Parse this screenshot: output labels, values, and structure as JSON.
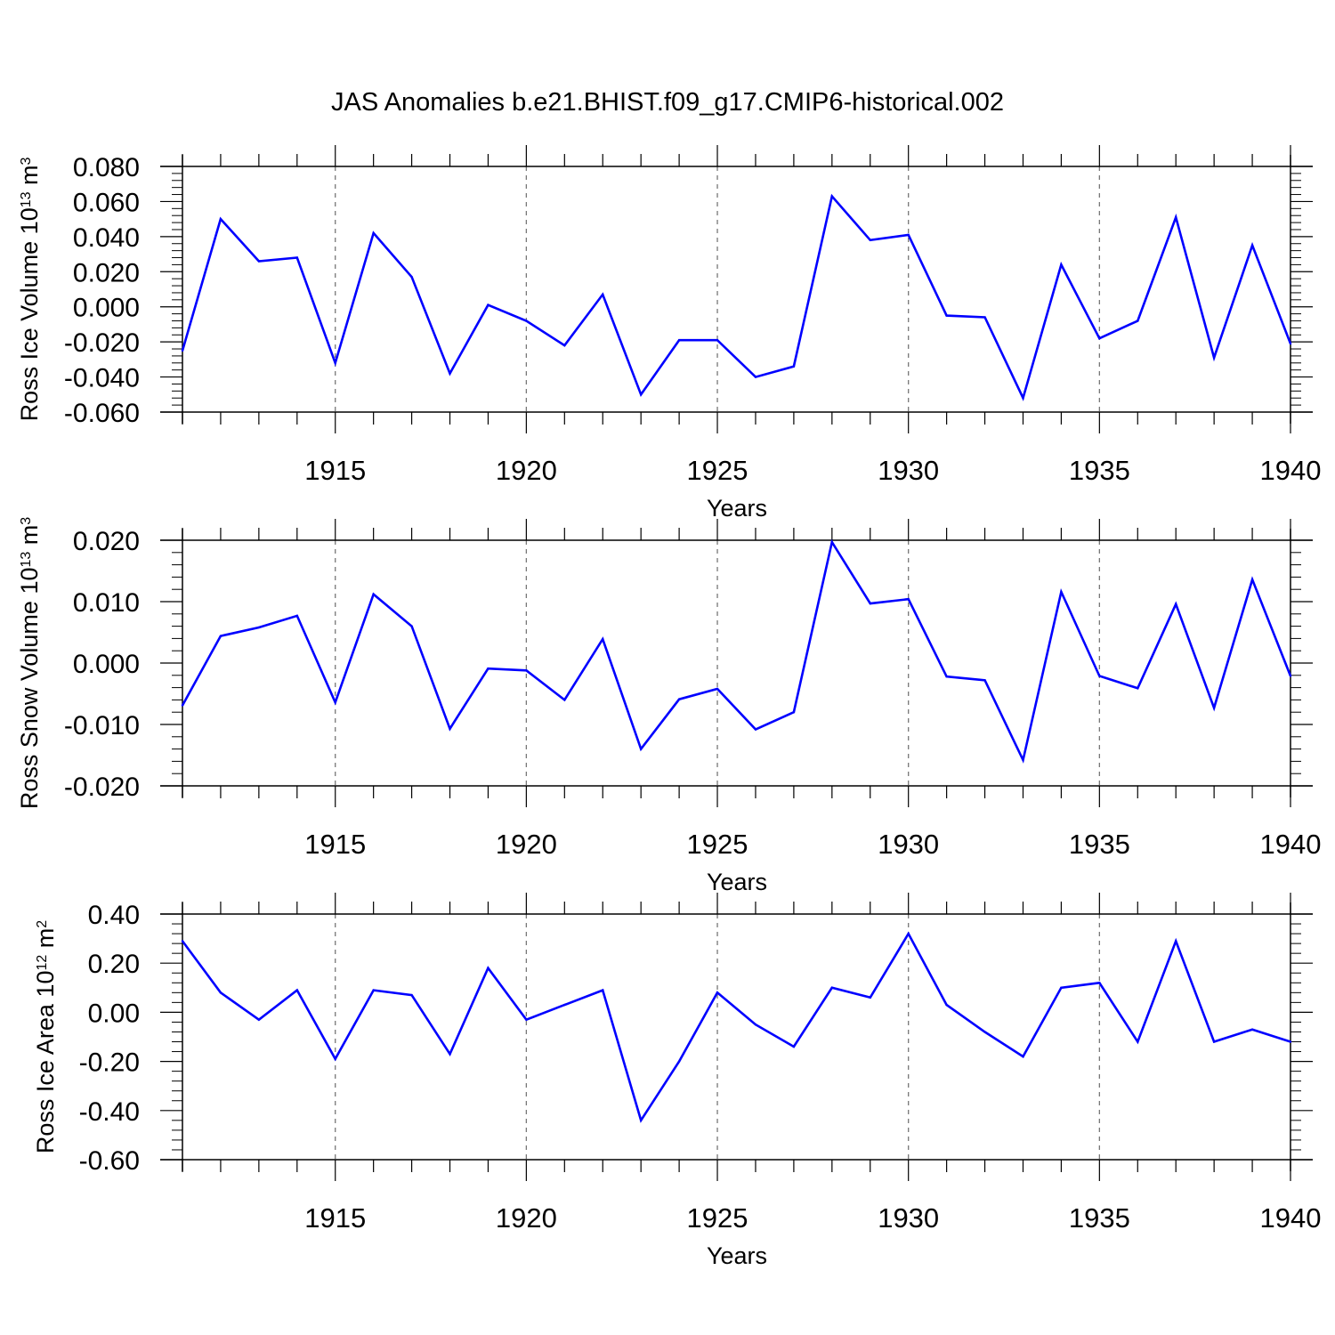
{
  "title": "JAS Anomalies b.e21.BHIST.f09_g17.CMIP6-historical.002",
  "line_color": "#0000ff",
  "chart_data": [
    {
      "type": "line",
      "xlabel": "Years",
      "ylabel": {
        "main": "Ross Ice Volume 10",
        "exp": "13",
        "unit": " m",
        "unit_exp": "3"
      },
      "xlim": [
        1911,
        1940
      ],
      "ylim": [
        -0.06,
        0.08
      ],
      "xticks": [
        "1915",
        "1920",
        "1925",
        "1930",
        "1935",
        "1940"
      ],
      "yticks": [
        "0.080",
        "0.060",
        "0.040",
        "0.020",
        "0.000",
        "-0.020",
        "-0.040",
        "-0.060"
      ],
      "grid": "x-only dashed",
      "x": [
        1911,
        1912,
        1913,
        1914,
        1915,
        1916,
        1917,
        1918,
        1919,
        1920,
        1921,
        1922,
        1923,
        1924,
        1925,
        1926,
        1927,
        1928,
        1929,
        1930,
        1931,
        1932,
        1933,
        1934,
        1935,
        1936,
        1937,
        1938,
        1939,
        1940
      ],
      "values": [
        -0.025,
        0.05,
        0.026,
        0.028,
        -0.032,
        0.042,
        0.017,
        -0.038,
        0.001,
        -0.008,
        -0.022,
        0.007,
        -0.05,
        -0.019,
        -0.019,
        -0.04,
        -0.034,
        0.063,
        0.038,
        0.041,
        -0.005,
        -0.006,
        -0.052,
        0.024,
        -0.018,
        -0.008,
        0.051,
        -0.029,
        0.035,
        -0.021
      ]
    },
    {
      "type": "line",
      "xlabel": "Years",
      "ylabel": {
        "main": "Ross Snow Volume 10",
        "exp": "13",
        "unit": " m",
        "unit_exp": "3"
      },
      "xlim": [
        1911,
        1940
      ],
      "ylim": [
        -0.02,
        0.02
      ],
      "xticks": [
        "1915",
        "1920",
        "1925",
        "1930",
        "1935",
        "1940"
      ],
      "yticks": [
        "0.020",
        "0.010",
        "0.000",
        "-0.010",
        "-0.020"
      ],
      "grid": "x-only dashed",
      "x": [
        1911,
        1912,
        1913,
        1914,
        1915,
        1916,
        1917,
        1918,
        1919,
        1920,
        1921,
        1922,
        1923,
        1924,
        1925,
        1926,
        1927,
        1928,
        1929,
        1930,
        1931,
        1932,
        1933,
        1934,
        1935,
        1936,
        1937,
        1938,
        1939,
        1940
      ],
      "values": [
        -0.0069,
        0.0044,
        0.0058,
        0.0077,
        -0.0064,
        0.0112,
        0.006,
        -0.0107,
        -0.0009,
        -0.0012,
        -0.006,
        0.0039,
        -0.014,
        -0.0059,
        -0.0042,
        -0.0108,
        -0.008,
        0.0197,
        0.0097,
        0.0104,
        -0.0022,
        -0.0028,
        -0.0158,
        0.0116,
        -0.0021,
        -0.0041,
        0.0096,
        -0.0073,
        0.0136,
        -0.0021
      ]
    },
    {
      "type": "line",
      "xlabel": "Years",
      "ylabel": {
        "main": "Ross Ice Area 10",
        "exp": "12",
        "unit": " m",
        "unit_exp": "2"
      },
      "xlim": [
        1911,
        1940
      ],
      "ylim": [
        -0.6,
        0.4
      ],
      "xticks": [
        "1915",
        "1920",
        "1925",
        "1930",
        "1935",
        "1940"
      ],
      "yticks": [
        "0.40",
        "0.20",
        "0.00",
        "-0.20",
        "-0.40",
        "-0.60"
      ],
      "grid": "x-only dashed",
      "x": [
        1911,
        1912,
        1913,
        1914,
        1915,
        1916,
        1917,
        1918,
        1919,
        1920,
        1921,
        1922,
        1923,
        1924,
        1925,
        1926,
        1927,
        1928,
        1929,
        1930,
        1931,
        1932,
        1933,
        1934,
        1935,
        1936,
        1937,
        1938,
        1939,
        1940
      ],
      "values": [
        0.29,
        0.08,
        -0.03,
        0.09,
        -0.19,
        0.09,
        0.07,
        -0.17,
        0.18,
        -0.03,
        0.03,
        0.09,
        -0.44,
        -0.2,
        0.08,
        -0.05,
        -0.14,
        0.1,
        0.06,
        0.32,
        0.03,
        -0.08,
        -0.18,
        0.1,
        0.12,
        -0.12,
        0.29,
        -0.12,
        -0.07,
        -0.12
      ]
    }
  ]
}
